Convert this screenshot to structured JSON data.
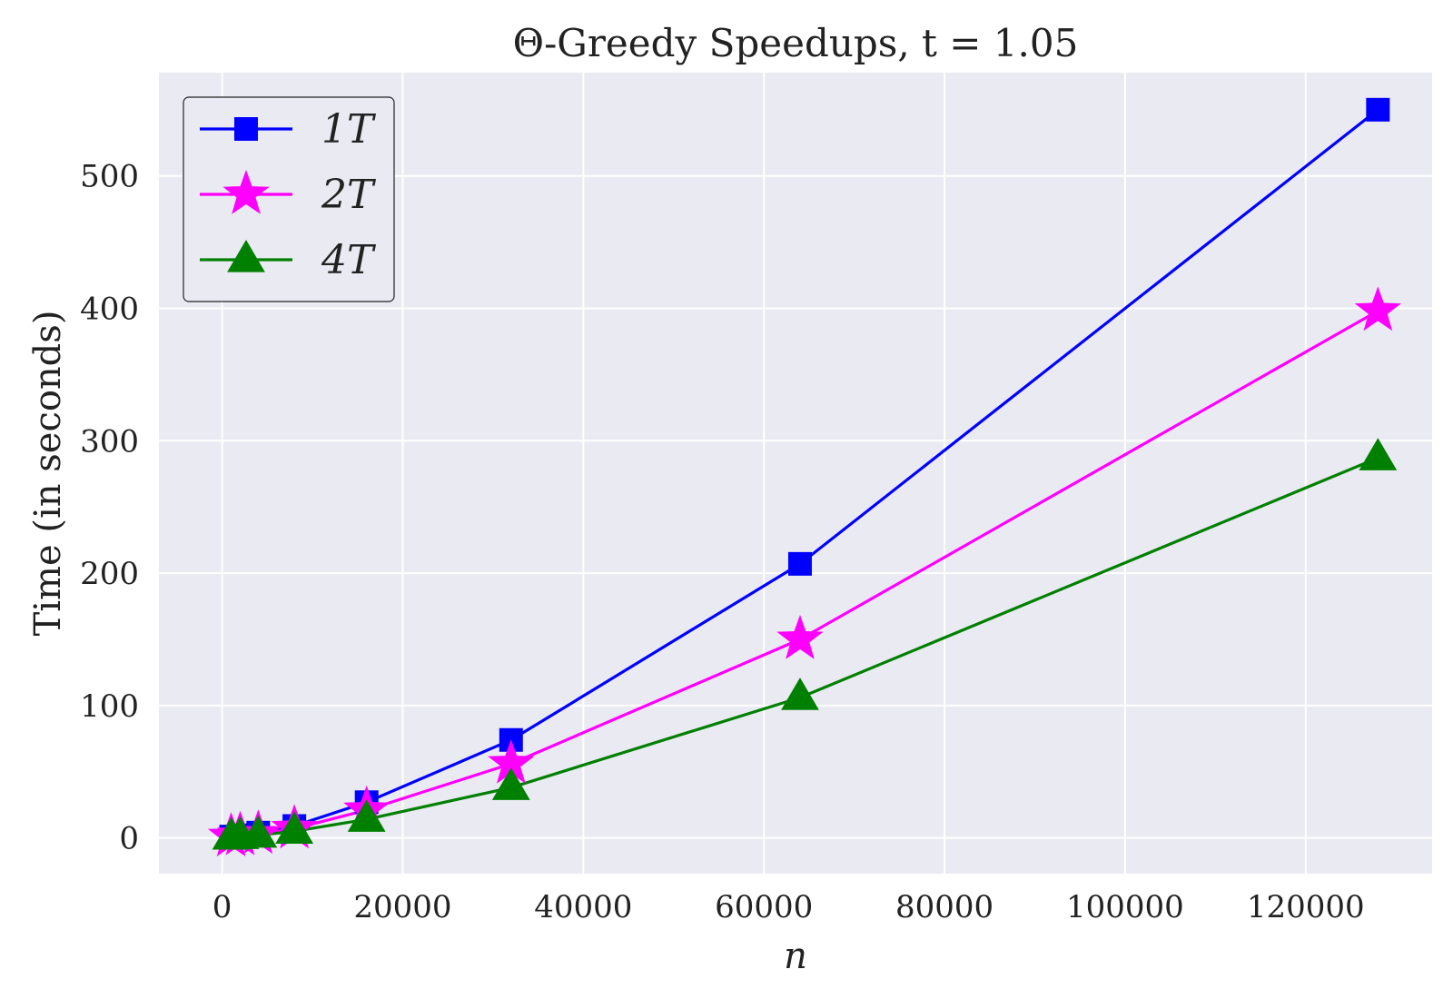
{
  "chart_data": {
    "type": "line",
    "title": "Θ-Greedy Speedups, t = 1.05",
    "xlabel": "n",
    "ylabel": "Time (in seconds)",
    "xlim": [
      -7000,
      134000
    ],
    "ylim": [
      -27,
      578
    ],
    "xticks": [
      0,
      20000,
      40000,
      60000,
      80000,
      100000,
      120000
    ],
    "yticks": [
      0,
      100,
      200,
      300,
      400,
      500
    ],
    "grid": true,
    "legend_position": "top-left",
    "x": [
      1000,
      2000,
      4000,
      8000,
      16000,
      32000,
      64000,
      128000
    ],
    "series": [
      {
        "name": "1T",
        "marker": "square",
        "color": "#0000ff",
        "values": [
          1,
          2,
          4,
          9,
          27,
          74,
          207,
          550
        ]
      },
      {
        "name": "2T",
        "marker": "star",
        "color": "#ff00ff",
        "values": [
          1,
          2,
          3,
          7,
          21,
          56,
          150,
          398
        ]
      },
      {
        "name": "4T",
        "marker": "triangle",
        "color": "#008000",
        "values": [
          0.5,
          1,
          2,
          5,
          14,
          38,
          106,
          287
        ]
      }
    ],
    "colors": {
      "plot_bg": "#eaeaf2",
      "grid": "#ffffff"
    }
  }
}
